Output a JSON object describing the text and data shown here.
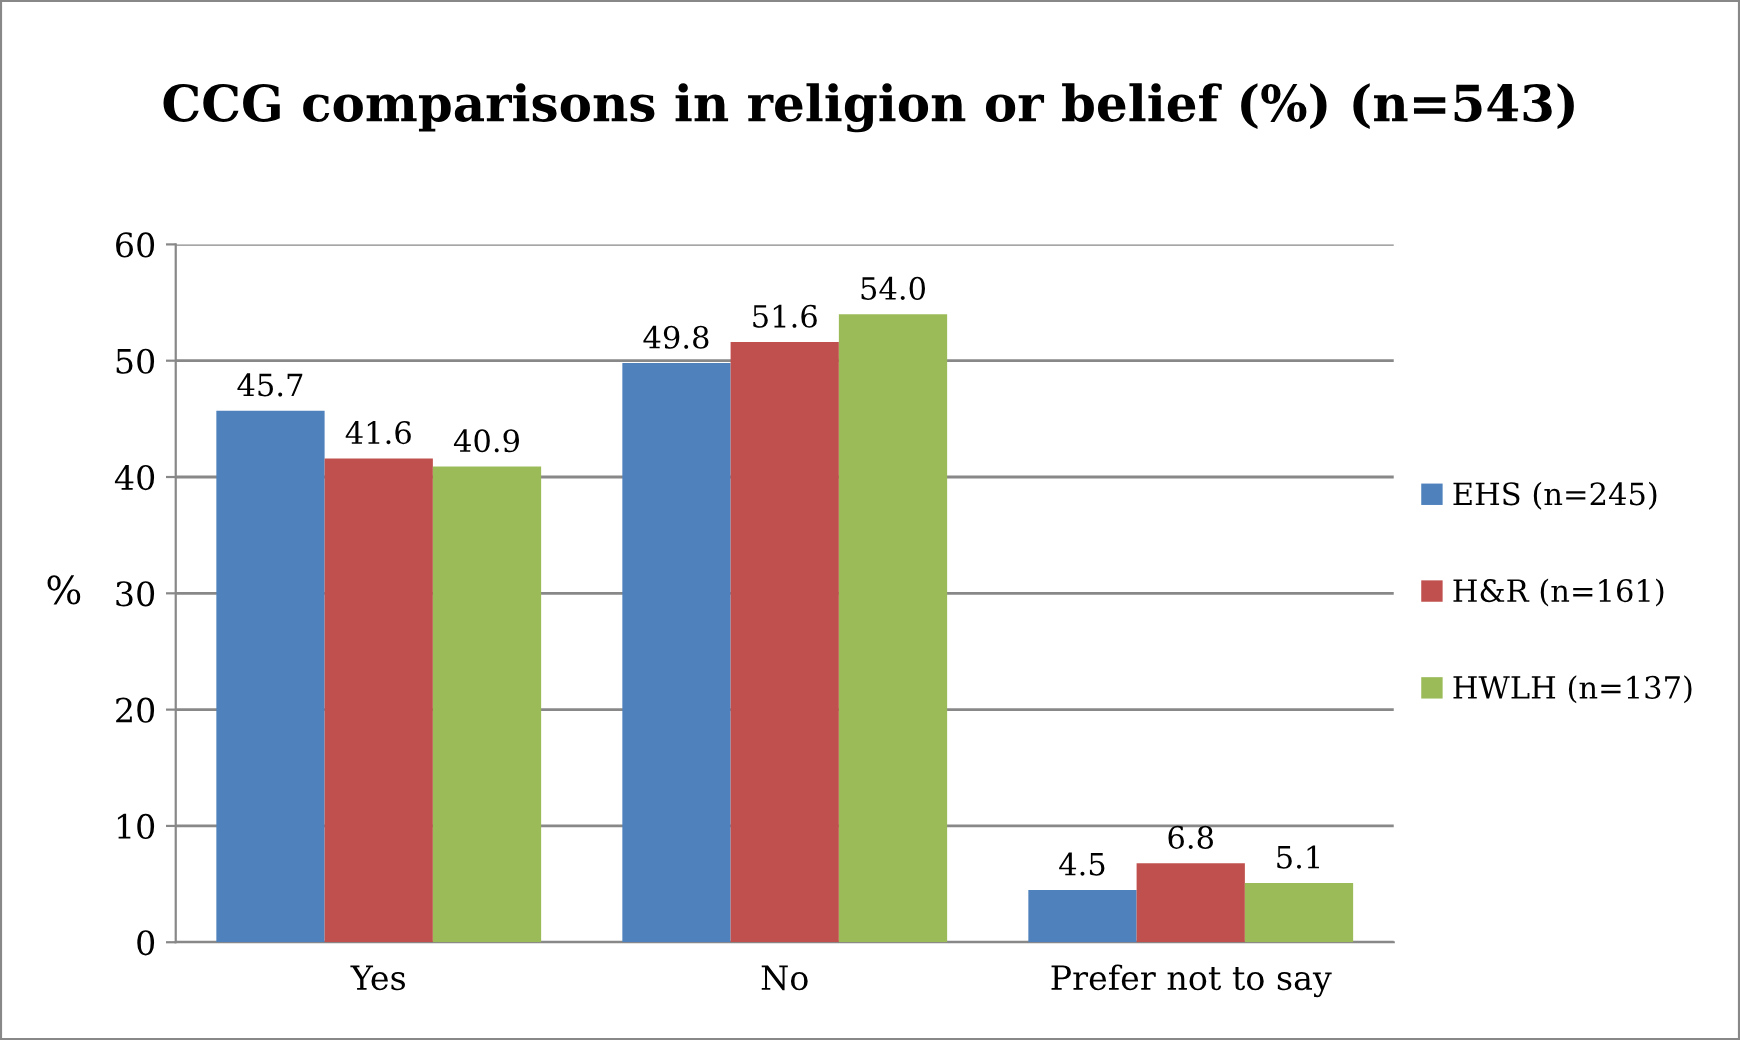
{
  "chart_data": {
    "type": "bar",
    "title": "CCG comparisons in religion or belief (%) (n=543)",
    "ylabel": "%",
    "categories": [
      "Yes",
      "No",
      "Prefer not to say"
    ],
    "series": [
      {
        "name": "EHS (n=245)",
        "color": "#4f81bd",
        "values": [
          45.7,
          49.8,
          4.5
        ],
        "value_labels": [
          "45.7",
          "49.8",
          "4.5"
        ]
      },
      {
        "name": "H&R (n=161)",
        "color": "#c0504d",
        "values": [
          41.6,
          51.6,
          6.8
        ],
        "value_labels": [
          "41.6",
          "51.6",
          "6.8"
        ]
      },
      {
        "name": "HWLH (n=137)",
        "color": "#9bbb59",
        "values": [
          40.9,
          54.0,
          5.1
        ],
        "value_labels": [
          "40.9",
          "54.0",
          "5.1"
        ]
      }
    ],
    "ylim": [
      0,
      60
    ],
    "yticks": [
      0,
      10,
      20,
      30,
      40,
      50,
      60
    ],
    "grid": "y",
    "legend": "right"
  }
}
